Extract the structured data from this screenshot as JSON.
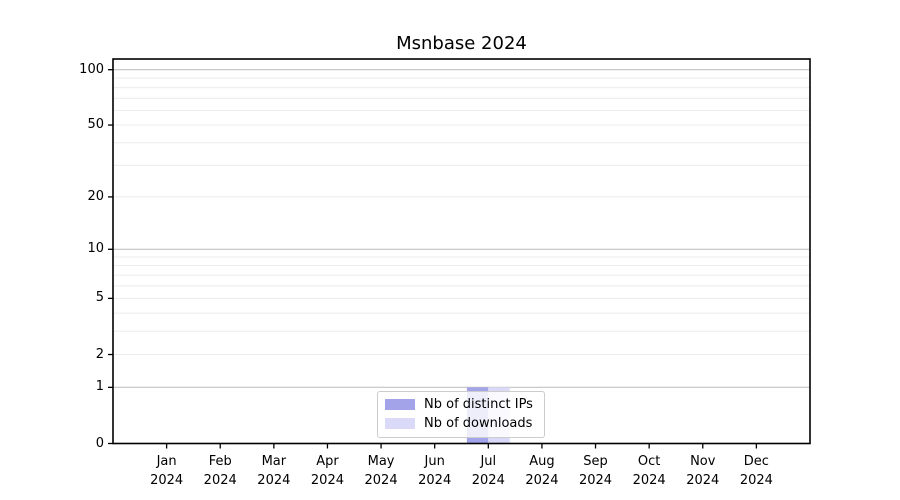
{
  "chart_data": {
    "type": "bar",
    "title": "Msnbase 2024",
    "categories": [
      "Jan 2024",
      "Feb 2024",
      "Mar 2024",
      "Apr 2024",
      "May 2024",
      "Jun 2024",
      "Jul 2024",
      "Aug 2024",
      "Sep 2024",
      "Oct 2024",
      "Nov 2024",
      "Dec 2024"
    ],
    "series": [
      {
        "name": "Nb of distinct IPs",
        "color": "#a3a3ea",
        "values": [
          0,
          0,
          0,
          0,
          0,
          0,
          1,
          0,
          0,
          0,
          0,
          0
        ]
      },
      {
        "name": "Nb of downloads",
        "color": "#dadaf8",
        "values": [
          0,
          0,
          0,
          0,
          0,
          0,
          1,
          0,
          0,
          0,
          0,
          0
        ]
      }
    ],
    "y_axis": {
      "scale": "log1p",
      "ticks": [
        0,
        1,
        2,
        5,
        10,
        20,
        50,
        100
      ],
      "minor_gridlines": [
        2,
        3,
        4,
        5,
        6,
        7,
        8,
        9,
        20,
        30,
        40,
        50,
        60,
        70,
        80,
        90
      ],
      "major_gridlines": [
        1,
        10,
        100
      ]
    },
    "xlabel": "",
    "ylabel": "",
    "legend_position": "lower center",
    "grid": "horizontal",
    "colors": {
      "axis": "#000000",
      "major_grid": "#c3c3c3",
      "minor_grid": "#ececec",
      "background": "#ffffff"
    }
  }
}
